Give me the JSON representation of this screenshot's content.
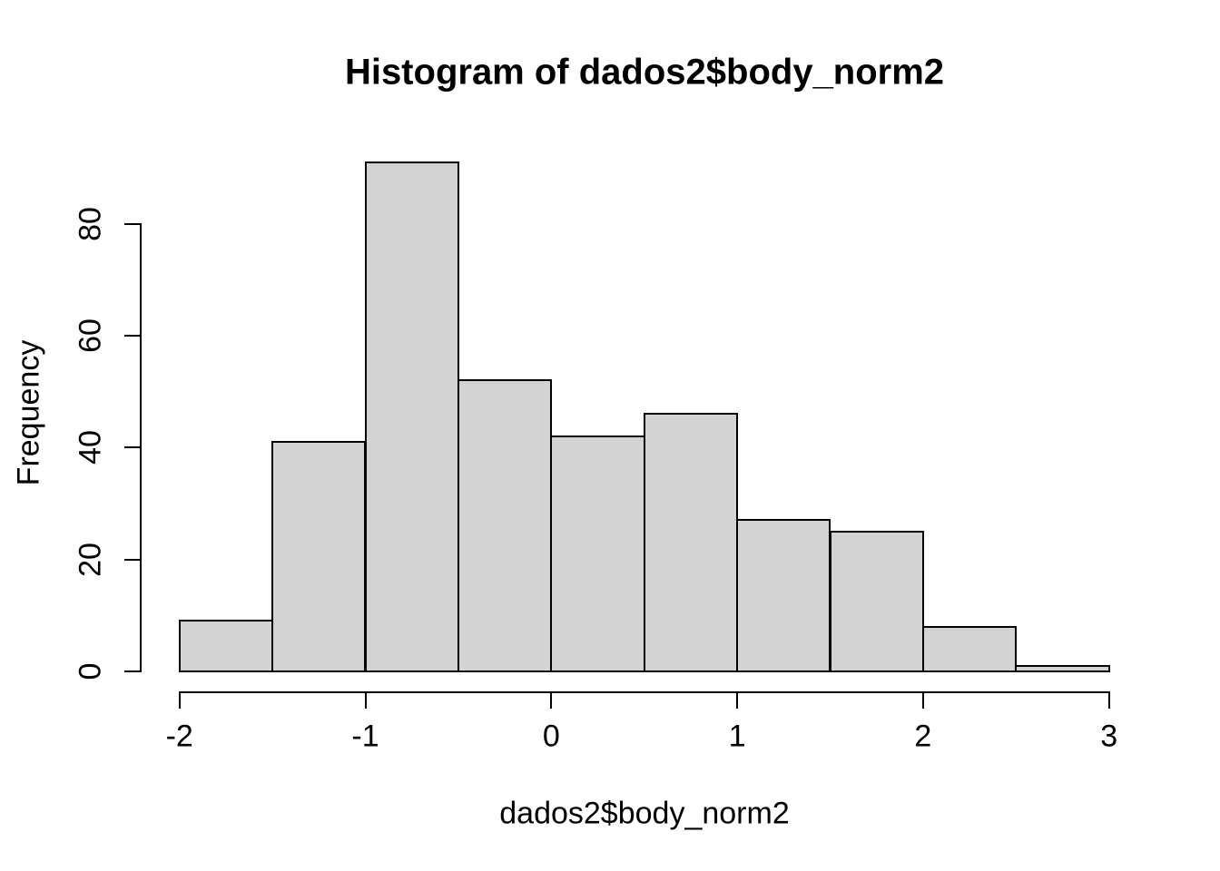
{
  "figure": {
    "background": "#ffffff"
  },
  "chart_data": {
    "type": "bar",
    "chart_kind": "histogram",
    "title": "Histogram of dados2$body_norm2",
    "xlabel": "dados2$body_norm2",
    "ylabel": "Frequency",
    "bin_edges": [
      -2,
      -1.5,
      -1,
      -0.5,
      0,
      0.5,
      1,
      1.5,
      2,
      2.5,
      3
    ],
    "counts": [
      9,
      41,
      91,
      52,
      42,
      46,
      27,
      25,
      8,
      1
    ],
    "x_tick_values": [
      -2,
      -1,
      0,
      1,
      2,
      3
    ],
    "x_tick_labels": [
      "-2",
      "-1",
      "0",
      "1",
      "2",
      "3"
    ],
    "y_tick_values": [
      0,
      20,
      40,
      60,
      80
    ],
    "y_tick_labels": [
      "0",
      "20",
      "40",
      "60",
      "80"
    ],
    "xlim": [
      -2,
      3
    ],
    "ylim": [
      0,
      80
    ],
    "grid": false,
    "legend": false,
    "bar_fill": "#d3d3d3",
    "bar_border": "#000000",
    "axis_color": "#000000",
    "text_color": "#000000"
  }
}
